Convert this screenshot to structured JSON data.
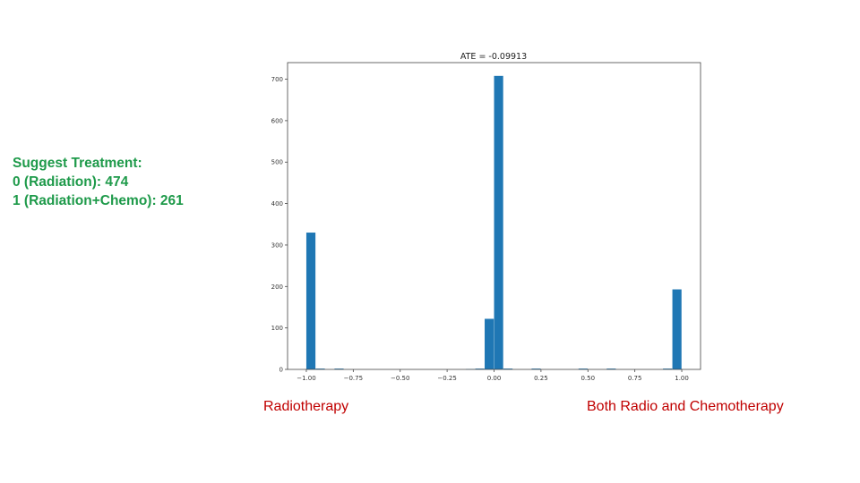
{
  "suggestion": {
    "title": "Suggest Treatment:",
    "line1": "0 (Radiation): 474",
    "line2": "1 (Radiation+Chemo): 261"
  },
  "captions": {
    "left": "Radiotherapy",
    "right": "Both Radio and Chemotherapy"
  },
  "chart_data": {
    "type": "bar",
    "title": "ATE = -0.09913",
    "xlabel": "",
    "ylabel": "",
    "xlim": [
      -1.1,
      1.1
    ],
    "ylim": [
      0,
      740
    ],
    "xticks": [
      -1.0,
      -0.75,
      -0.5,
      -0.25,
      0.0,
      0.25,
      0.5,
      0.75,
      1.0
    ],
    "xtick_labels": [
      "−1.00",
      "−0.75",
      "−0.50",
      "−0.25",
      "0.00",
      "0.25",
      "0.50",
      "0.75",
      "1.00"
    ],
    "yticks": [
      0,
      100,
      200,
      300,
      400,
      500,
      600,
      700
    ],
    "bin_width": 0.05,
    "bars": [
      {
        "x": -0.975,
        "value": 330
      },
      {
        "x": -0.925,
        "value": 2
      },
      {
        "x": -0.825,
        "value": 2
      },
      {
        "x": -0.125,
        "value": 1
      },
      {
        "x": -0.075,
        "value": 2
      },
      {
        "x": -0.025,
        "value": 122
      },
      {
        "x": 0.025,
        "value": 708
      },
      {
        "x": 0.075,
        "value": 2
      },
      {
        "x": 0.225,
        "value": 2
      },
      {
        "x": 0.475,
        "value": 2
      },
      {
        "x": 0.625,
        "value": 2
      },
      {
        "x": 0.925,
        "value": 2
      },
      {
        "x": 0.975,
        "value": 193
      }
    ],
    "bar_color": "#1f77b4",
    "grid": false,
    "legend": false
  }
}
